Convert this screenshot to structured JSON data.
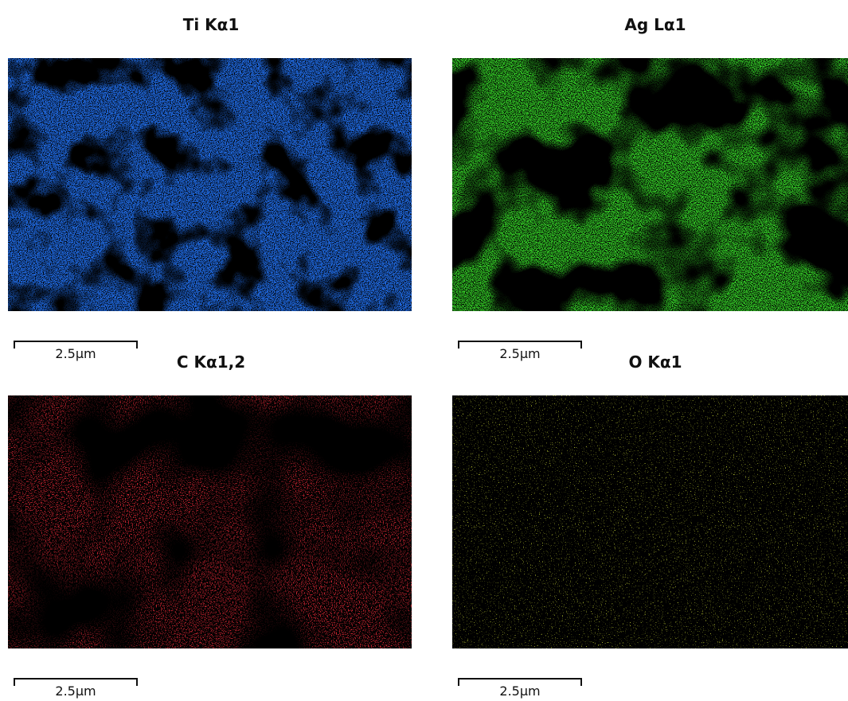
{
  "panels": [
    {
      "title": "Ti Kα1",
      "scale_label": "2.5µm"
    },
    {
      "title": "Ag Lα1",
      "scale_label": "2.5µm"
    },
    {
      "title": "C Kα1,2",
      "scale_label": "2.5µm"
    },
    {
      "title": "O Kα1",
      "scale_label": "2.5µm"
    }
  ]
}
